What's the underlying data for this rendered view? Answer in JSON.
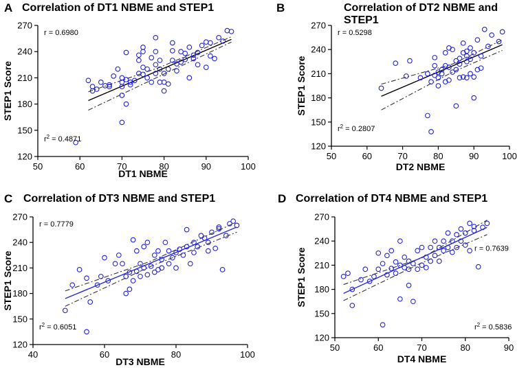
{
  "chart_data": [
    {
      "type": "scatter",
      "panel_label": "A",
      "title_lines": [
        "Correlation of DT1 NBME and STEP1"
      ],
      "xlabel": "DT1 NBME",
      "ylabel": "STEP1 Score",
      "xlim": [
        50,
        100
      ],
      "ylim": [
        120,
        270
      ],
      "xticks": [
        50,
        60,
        70,
        80,
        90,
        100
      ],
      "yticks": [
        120,
        150,
        180,
        210,
        240,
        270
      ],
      "r_label": "r = 0.6980",
      "r2_label_prefix": "r",
      "r2_label_value": " = 0.4871",
      "r_position": "top-left",
      "r2_position": "bottom-left",
      "fit_color": "#000000",
      "fit_line": {
        "x": [
          62,
          96
        ],
        "y": [
          184,
          254
        ]
      },
      "ci_upper": {
        "x": [
          62,
          79,
          96
        ],
        "y": [
          194,
          222,
          257
        ]
      },
      "ci_lower": {
        "x": [
          62,
          79,
          96
        ],
        "y": [
          173,
          212,
          251
        ]
      },
      "x": [
        59,
        62,
        63,
        63,
        64,
        65,
        66,
        67,
        67,
        68,
        69,
        70,
        70,
        70,
        70,
        70,
        71,
        71,
        71,
        72,
        72,
        73,
        74,
        74,
        74,
        75,
        75,
        75,
        75,
        76,
        76,
        77,
        77,
        78,
        78,
        78,
        78,
        79,
        79,
        79,
        80,
        80,
        80,
        81,
        81,
        82,
        82,
        82,
        83,
        83,
        84,
        84,
        85,
        85,
        86,
        86,
        87,
        87,
        88,
        88,
        89,
        90,
        90,
        91,
        91,
        92,
        93,
        94,
        95,
        96
      ],
      "y": [
        136,
        207,
        195,
        200,
        197,
        205,
        201,
        200,
        202,
        212,
        220,
        190,
        200,
        205,
        210,
        159,
        180,
        208,
        239,
        202,
        205,
        207,
        215,
        230,
        236,
        214,
        222,
        240,
        245,
        210,
        220,
        205,
        233,
        215,
        225,
        240,
        256,
        205,
        220,
        230,
        195,
        205,
        215,
        203,
        220,
        230,
        241,
        250,
        218,
        226,
        228,
        240,
        231,
        238,
        210,
        245,
        236,
        232,
        239,
        225,
        247,
        222,
        251,
        235,
        250,
        232,
        256,
        252,
        264,
        263
      ]
    },
    {
      "type": "scatter",
      "panel_label": "B",
      "title_lines": [
        "Correlation of DT2 NBME and",
        "STEP1"
      ],
      "xlabel": "DT2 NBME",
      "ylabel": "STEP1 Score",
      "xlim": [
        50,
        100
      ],
      "ylim": [
        120,
        270
      ],
      "xticks": [
        50,
        60,
        70,
        80,
        90,
        100
      ],
      "yticks": [
        120,
        150,
        180,
        210,
        240,
        270
      ],
      "r_label": "r = 0.5298",
      "r2_label_prefix": "r",
      "r2_label_value": " = 0.2807",
      "r_position": "top-left",
      "r2_position": "bottom-left",
      "fit_color": "#000000",
      "fit_line": {
        "x": [
          64,
          98
        ],
        "y": [
          182,
          246
        ]
      },
      "ci_upper": {
        "x": [
          64,
          84,
          98
        ],
        "y": [
          197,
          222,
          252
        ]
      },
      "ci_lower": {
        "x": [
          64,
          84,
          98
        ],
        "y": [
          165,
          212,
          239
        ]
      },
      "x": [
        64,
        68,
        71,
        72,
        75,
        77,
        77,
        78,
        78,
        79,
        79,
        79,
        80,
        80,
        80,
        81,
        81,
        82,
        82,
        82,
        83,
        83,
        83,
        84,
        84,
        85,
        85,
        85,
        86,
        86,
        86,
        87,
        87,
        87,
        88,
        88,
        88,
        88,
        89,
        89,
        89,
        90,
        90,
        90,
        91,
        91,
        92,
        92,
        93,
        94,
        95,
        97,
        98
      ],
      "y": [
        192,
        223,
        207,
        226,
        205,
        158,
        210,
        138,
        200,
        208,
        220,
        230,
        195,
        205,
        212,
        210,
        215,
        200,
        220,
        236,
        202,
        218,
        242,
        212,
        240,
        215,
        226,
        170,
        205,
        222,
        229,
        206,
        236,
        248,
        205,
        225,
        232,
        238,
        210,
        228,
        242,
        180,
        206,
        236,
        215,
        252,
        217,
        232,
        265,
        244,
        258,
        250,
        262
      ]
    },
    {
      "type": "scatter",
      "panel_label": "C",
      "title_lines": [
        "Correlation of DT3 NBME and STEP1"
      ],
      "xlabel": "DT3 NBME",
      "ylabel": "STEP1 Score",
      "xlim": [
        40,
        100
      ],
      "ylim": [
        120,
        270
      ],
      "xticks": [
        40,
        60,
        80,
        100
      ],
      "yticks": [
        120,
        150,
        180,
        210,
        240,
        270
      ],
      "r_label": "r = 0.7779",
      "r2_label_prefix": "r",
      "r2_label_value": " = 0.6051",
      "r_position": "top-left",
      "r2_position": "bottom-left",
      "fit_color": "#2b2bd6",
      "fit_line": {
        "x": [
          49,
          97
        ],
        "y": [
          174,
          258
        ]
      },
      "ci_upper": {
        "x": [
          49,
          73,
          97
        ],
        "y": [
          183,
          218,
          264
        ]
      },
      "ci_lower": {
        "x": [
          49,
          73,
          97
        ],
        "y": [
          165,
          212,
          252
        ]
      },
      "x": [
        49,
        51,
        53,
        55,
        55,
        56,
        58,
        59,
        60,
        61,
        63,
        64,
        65,
        66,
        66,
        67,
        67,
        68,
        68,
        69,
        69,
        70,
        70,
        71,
        71,
        72,
        72,
        73,
        74,
        74,
        75,
        75,
        76,
        76,
        77,
        78,
        78,
        79,
        80,
        80,
        81,
        82,
        83,
        83,
        84,
        85,
        85,
        86,
        87,
        88,
        89,
        89,
        90,
        91,
        92,
        92,
        93,
        94,
        95,
        96,
        97
      ],
      "y": [
        160,
        190,
        208,
        135,
        198,
        170,
        190,
        200,
        222,
        195,
        215,
        225,
        215,
        180,
        200,
        185,
        205,
        195,
        243,
        206,
        230,
        200,
        215,
        210,
        235,
        202,
        240,
        212,
        205,
        225,
        208,
        230,
        210,
        220,
        240,
        215,
        230,
        222,
        210,
        228,
        232,
        225,
        235,
        255,
        215,
        240,
        228,
        235,
        248,
        245,
        240,
        230,
        252,
        233,
        256,
        258,
        208,
        248,
        262,
        265,
        260
      ]
    },
    {
      "type": "scatter",
      "panel_label": "D",
      "title_lines": [
        "Correlation of DT4 NBME and STEP1"
      ],
      "xlabel": "DT4 NBME",
      "ylabel": "STEP1 Score",
      "xlim": [
        50,
        90
      ],
      "ylim": [
        120,
        270
      ],
      "xticks": [
        50,
        60,
        70,
        80,
        90
      ],
      "yticks": [
        120,
        150,
        180,
        210,
        240,
        270
      ],
      "r_label": "r = 0.7639",
      "r2_label_prefix": "r",
      "r2_label_value": " = 0.5836",
      "r_position": "right",
      "r2_position": "bottom-right",
      "fit_color": "#2b2bd6",
      "fit_line": {
        "x": [
          52,
          85
        ],
        "y": [
          175,
          257
        ]
      },
      "ci_upper": {
        "x": [
          52,
          70,
          85
        ],
        "y": [
          186,
          219,
          266
        ]
      },
      "ci_lower": {
        "x": [
          52,
          70,
          85
        ],
        "y": [
          166,
          213,
          248
        ]
      },
      "x": [
        52,
        53,
        54,
        54,
        56,
        57,
        58,
        59,
        60,
        60,
        61,
        61,
        62,
        62,
        63,
        63,
        64,
        64,
        65,
        65,
        65,
        66,
        66,
        67,
        67,
        67,
        68,
        68,
        69,
        69,
        70,
        70,
        71,
        71,
        72,
        72,
        73,
        73,
        74,
        74,
        75,
        75,
        76,
        76,
        77,
        77,
        78,
        78,
        79,
        79,
        80,
        80,
        81,
        81,
        82,
        82,
        83,
        84,
        85
      ],
      "y": [
        196,
        200,
        180,
        160,
        192,
        205,
        190,
        196,
        205,
        225,
        136,
        212,
        198,
        222,
        206,
        228,
        214,
        200,
        168,
        210,
        240,
        207,
        220,
        185,
        205,
        215,
        165,
        212,
        205,
        228,
        210,
        232,
        207,
        220,
        232,
        215,
        222,
        240,
        215,
        232,
        228,
        240,
        232,
        250,
        226,
        240,
        232,
        248,
        240,
        255,
        235,
        250,
        228,
        262,
        253,
        258,
        208,
        257,
        262
      ]
    }
  ]
}
